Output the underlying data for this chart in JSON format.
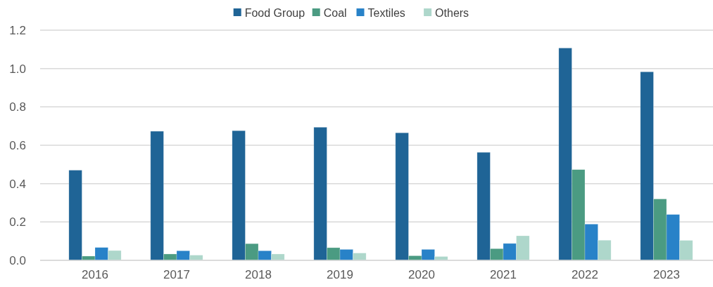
{
  "chart_data": {
    "type": "bar",
    "categories": [
      "2016",
      "2017",
      "2018",
      "2019",
      "2020",
      "2021",
      "2022",
      "2023"
    ],
    "series": [
      {
        "name": "Food Group",
        "color": "#1f6496",
        "values": [
          0.47,
          0.673,
          0.676,
          0.694,
          0.665,
          0.563,
          1.107,
          0.983
        ]
      },
      {
        "name": "Coal",
        "color": "#4b9b82",
        "values": [
          0.022,
          0.033,
          0.087,
          0.066,
          0.024,
          0.061,
          0.473,
          0.32
        ]
      },
      {
        "name": "Textiles",
        "color": "#2882c8",
        "values": [
          0.067,
          0.05,
          0.05,
          0.057,
          0.057,
          0.088,
          0.189,
          0.239
        ]
      },
      {
        "name": "Others",
        "color": "#aed7cb",
        "values": [
          0.051,
          0.027,
          0.033,
          0.038,
          0.02,
          0.128,
          0.105,
          0.104
        ]
      }
    ],
    "ylim": [
      0,
      1.2
    ],
    "yticks": [
      {
        "value": 0,
        "label": "0.0"
      },
      {
        "value": 0.2,
        "label": "0.2"
      },
      {
        "value": 0.4,
        "label": "0.4"
      },
      {
        "value": 0.6,
        "label": "0.6"
      },
      {
        "value": 0.8,
        "label": "0.8"
      },
      {
        "value": 1,
        "label": "1.0"
      },
      {
        "value": 1.2,
        "label": "1.2"
      }
    ],
    "grid": "y",
    "legend": "top"
  }
}
